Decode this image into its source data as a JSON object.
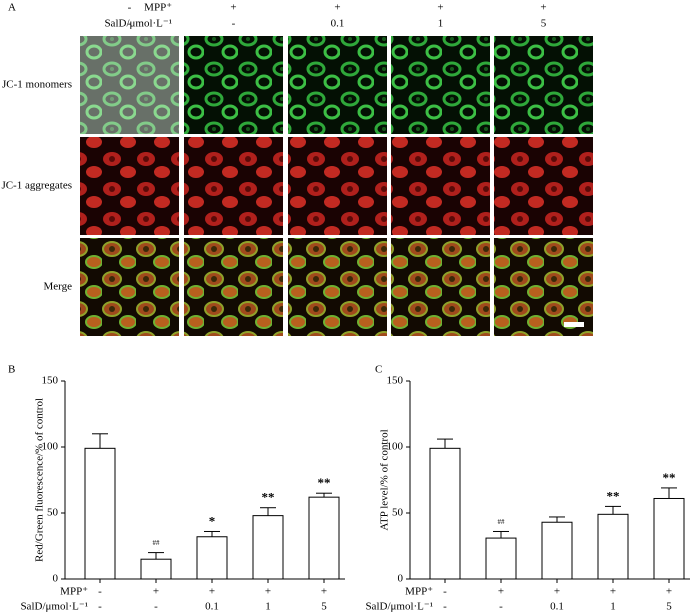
{
  "panel_a": {
    "label": "A",
    "treatments": [
      {
        "label": "MPP⁺",
        "values": [
          "-",
          "+",
          "+",
          "+",
          "+"
        ]
      },
      {
        "label": "SalD/μmol·L⁻¹",
        "values": [
          "-",
          "-",
          "0.1",
          "1",
          "5"
        ]
      }
    ],
    "rows": [
      "JC-1 monomers",
      "JC-1 aggregates",
      "Merge"
    ]
  },
  "chart_data": [
    {
      "type": "bar",
      "panel": "B",
      "ylabel": "Red/Green fluorescence/% of control",
      "values": [
        99,
        15,
        32,
        48,
        62
      ],
      "error": [
        11,
        5,
        4,
        6,
        3
      ],
      "annotations": [
        null,
        "##",
        "*",
        "**",
        "**"
      ],
      "treatments": [
        {
          "label": "MPP⁺",
          "values": [
            "-",
            "+",
            "+",
            "+",
            "+"
          ]
        },
        {
          "label": "SalD/μmol·L⁻¹",
          "values": [
            "-",
            "-",
            "0.1",
            "1",
            "5"
          ]
        }
      ],
      "ylim": [
        0,
        150
      ],
      "yticks": [
        0,
        50,
        100,
        150
      ],
      "color": "#ffffff"
    },
    {
      "type": "bar",
      "panel": "C",
      "ylabel": "ATP level/% of control",
      "values": [
        99,
        31,
        43,
        49,
        61
      ],
      "error": [
        7,
        5,
        4,
        6,
        8
      ],
      "annotations": [
        null,
        "##",
        null,
        "**",
        "**"
      ],
      "treatments": [
        {
          "label": "MPP⁺",
          "values": [
            "-",
            "+",
            "+",
            "+",
            "+"
          ]
        },
        {
          "label": "SalD/μmol·L⁻¹",
          "values": [
            "-",
            "-",
            "0.1",
            "1",
            "5"
          ]
        }
      ],
      "ylim": [
        0,
        150
      ],
      "yticks": [
        0,
        50,
        100,
        150
      ],
      "color": "#ffffff"
    }
  ]
}
